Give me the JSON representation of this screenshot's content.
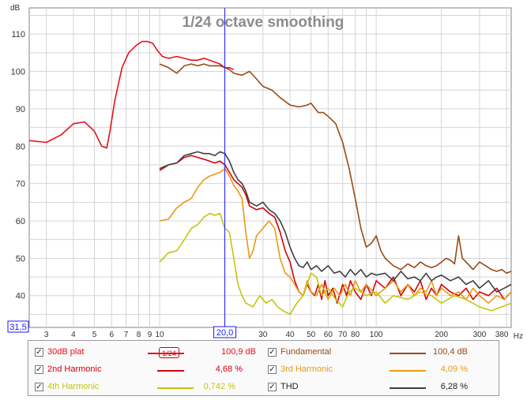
{
  "chart_data": {
    "type": "line",
    "title": "1/24 octave smoothing",
    "xlabel": "Hz",
    "ylabel": "dB",
    "xscale": "log",
    "xlim": [
      2.5,
      420
    ],
    "ylim": [
      31.5,
      117
    ],
    "grid": true,
    "y_ticks": [
      110,
      100,
      90,
      80,
      70,
      60,
      50,
      40
    ],
    "y_axis_min_label": "31,5",
    "x_ticks": [
      {
        "v": 3,
        "label": "3"
      },
      {
        "v": 4,
        "label": "4"
      },
      {
        "v": 5,
        "label": "5"
      },
      {
        "v": 6,
        "label": "6"
      },
      {
        "v": 7,
        "label": "7"
      },
      {
        "v": 8,
        "label": "8"
      },
      {
        "v": 9,
        "label": "9"
      },
      {
        "v": 10,
        "label": "10"
      },
      {
        "v": 30,
        "label": "30"
      },
      {
        "v": 40,
        "label": "40"
      },
      {
        "v": 50,
        "label": "50"
      },
      {
        "v": 60,
        "label": "60"
      },
      {
        "v": 70,
        "label": "70"
      },
      {
        "v": 80,
        "label": "80"
      },
      {
        "v": 100,
        "label": "100"
      },
      {
        "v": 200,
        "label": "200"
      },
      {
        "v": 300,
        "label": "300"
      },
      {
        "v": 380,
        "label": "380"
      }
    ],
    "cursor": {
      "x": 20,
      "label": "20,0"
    },
    "series": [
      {
        "name": "30dB plat",
        "color": "#e8101a",
        "x": [
          2.5,
          3,
          3.5,
          4,
          4.5,
          5,
          5.4,
          5.7,
          5.9,
          6.2,
          6.7,
          7.2,
          7.8,
          8.3,
          8.8,
          9.3,
          9.8,
          10.3,
          11,
          12,
          13,
          14,
          15,
          16,
          17,
          18,
          19,
          20,
          21,
          22
        ],
        "y": [
          81.5,
          81,
          83,
          86,
          86.5,
          84,
          80,
          79.5,
          84,
          92,
          101,
          105,
          107,
          108,
          108,
          107.5,
          105.5,
          104,
          103.5,
          104,
          103.5,
          103,
          103,
          103.5,
          103,
          102.5,
          102,
          101,
          101,
          100.5
        ]
      },
      {
        "name": "Fundamental",
        "color": "#9a4a14",
        "x": [
          10,
          11,
          12,
          13,
          14,
          15,
          16,
          17,
          18,
          19,
          20,
          21,
          22,
          24,
          26,
          28,
          30,
          33,
          36,
          40,
          44,
          48,
          50,
          54,
          57,
          60,
          65,
          70,
          75,
          80,
          85,
          90,
          95,
          100,
          105,
          110,
          120,
          130,
          140,
          150,
          160,
          170,
          180,
          190,
          200,
          210,
          220,
          230,
          240,
          250,
          260,
          280,
          300,
          320,
          340,
          360,
          380,
          400,
          420
        ],
        "y": [
          102,
          101,
          99.5,
          101.5,
          102,
          101.5,
          102,
          101.5,
          101.5,
          101.5,
          101,
          100.5,
          99.5,
          99,
          100,
          98,
          96,
          95,
          93,
          91,
          90.5,
          91,
          91.5,
          89,
          89,
          88,
          86,
          81,
          74,
          66,
          58,
          53,
          54,
          56,
          52,
          50,
          48,
          47,
          48.5,
          47.5,
          49,
          48,
          47.5,
          48,
          49,
          50,
          49.5,
          48.5,
          56,
          50,
          49,
          47,
          49,
          48,
          47,
          46.5,
          47,
          46,
          46.5
        ]
      },
      {
        "name": "2nd Harmonic",
        "color": "#d4000e",
        "x": [
          10,
          11,
          12,
          13,
          14,
          15,
          16,
          17,
          18,
          19,
          20,
          21,
          22,
          23,
          24,
          25,
          26,
          28,
          30,
          32,
          34,
          36,
          38,
          40,
          42,
          44,
          46,
          48,
          50,
          52,
          54,
          56,
          58,
          60,
          63,
          66,
          70,
          73,
          76,
          80,
          85,
          90,
          95,
          100,
          110,
          120,
          130,
          140,
          150,
          160,
          170,
          180,
          190,
          200,
          220,
          240,
          260,
          280,
          300,
          330,
          360,
          390,
          420
        ],
        "y": [
          73.5,
          75,
          75.5,
          77,
          77.5,
          77,
          76.5,
          76,
          75.5,
          76,
          75,
          73,
          71,
          70,
          69,
          67,
          64,
          63,
          63.5,
          62,
          61,
          57,
          52,
          49,
          44,
          41,
          40,
          43,
          41,
          40,
          43,
          39,
          44,
          40,
          42,
          38,
          43,
          40,
          44,
          41,
          39,
          43,
          40,
          44,
          42,
          45,
          40,
          43,
          41,
          44,
          39,
          42,
          40,
          43,
          41,
          40,
          42,
          39,
          41,
          40,
          42,
          39,
          41
        ]
      },
      {
        "name": "3rd Harmonic",
        "color": "#e89a14",
        "x": [
          10,
          11,
          12,
          13,
          14,
          15,
          16,
          17,
          18,
          19,
          20,
          21,
          22,
          23,
          24,
          25,
          26,
          27,
          28,
          30,
          32,
          34,
          36,
          38,
          40,
          42,
          44,
          46,
          48,
          50,
          53,
          56,
          60,
          64,
          68,
          72,
          76,
          80,
          85,
          90,
          100,
          110,
          120,
          130,
          140,
          150,
          160,
          170,
          180,
          190,
          200,
          220,
          240,
          260,
          280,
          300,
          330,
          360,
          390,
          420
        ],
        "y": [
          60,
          60.5,
          63.5,
          65,
          66,
          69,
          71,
          72,
          72.5,
          73,
          74,
          72,
          69.5,
          68,
          66,
          57,
          50,
          52,
          56,
          58,
          60,
          58,
          50,
          46,
          45,
          43,
          41,
          40,
          44,
          41,
          40,
          43,
          39,
          42,
          40,
          43,
          40,
          44,
          41,
          43,
          40,
          42,
          44,
          41,
          43,
          40,
          42,
          41,
          44,
          40,
          42,
          40,
          41,
          39,
          42,
          40,
          38,
          40,
          39,
          41
        ]
      },
      {
        "name": "4th Harmonic",
        "color": "#c4c410",
        "x": [
          10,
          11,
          12,
          13,
          14,
          15,
          16,
          17,
          18,
          19,
          20,
          21,
          22,
          23,
          24,
          25,
          27,
          29,
          31,
          33,
          35,
          37,
          40,
          43,
          46,
          50,
          53,
          56,
          60,
          65,
          70,
          75,
          80,
          90,
          100,
          110,
          120,
          140,
          160,
          180,
          200,
          230,
          260,
          300,
          340,
          380,
          420
        ],
        "y": [
          49,
          51.5,
          52,
          55,
          58,
          59,
          61,
          62,
          61.5,
          62,
          58,
          57,
          50,
          43,
          40,
          38,
          37,
          40,
          38,
          39,
          37,
          36,
          35,
          38,
          40,
          46,
          45,
          40,
          42,
          39,
          37,
          41,
          42,
          40,
          41,
          38,
          40,
          39,
          41,
          40,
          38,
          40,
          39,
          37,
          36,
          37,
          38
        ]
      },
      {
        "name": "THD",
        "color": "#404040",
        "x": [
          10,
          11,
          12,
          13,
          14,
          15,
          16,
          17,
          18,
          19,
          20,
          21,
          22,
          23,
          24,
          25,
          26,
          28,
          30,
          32,
          34,
          36,
          38,
          40,
          42,
          44,
          46,
          48,
          50,
          53,
          56,
          60,
          64,
          68,
          72,
          76,
          80,
          85,
          90,
          95,
          100,
          110,
          120,
          130,
          140,
          150,
          160,
          170,
          180,
          190,
          200,
          220,
          240,
          260,
          280,
          300,
          330,
          360,
          390,
          420
        ],
        "y": [
          74,
          75,
          75.5,
          77.5,
          78,
          78.5,
          78,
          78,
          77.5,
          78.5,
          78,
          76,
          73,
          71,
          70,
          68,
          65,
          64,
          65,
          63,
          62,
          60,
          57,
          53,
          50,
          48,
          47.5,
          49,
          47,
          48,
          46.5,
          48,
          46,
          46.5,
          45,
          47,
          45.5,
          47,
          45,
          46,
          45.5,
          46,
          44,
          46.5,
          44.5,
          45,
          44,
          46,
          44,
          45,
          45.5,
          44,
          45,
          43,
          44,
          42,
          44,
          41,
          42,
          43
        ]
      }
    ]
  },
  "legend": [
    {
      "label": "30dB plat",
      "value": "100,9 dB",
      "color": "#e8101a",
      "checked": true,
      "smoothing": "1/24"
    },
    {
      "label": "Fundamental",
      "value": "100,4 dB",
      "color": "#9a4a14",
      "checked": true
    },
    {
      "label": "2nd Harmonic",
      "value": "4,68 %",
      "color": "#d4000e",
      "checked": true
    },
    {
      "label": "3rd Harmonic",
      "value": "4,09 %",
      "color": "#e89a14",
      "checked": true
    },
    {
      "label": "4th Harmonic",
      "value": "0,742 %",
      "color": "#c4c410",
      "checked": true
    },
    {
      "label": "THD",
      "value": "6,28 %",
      "color": "#404040",
      "checked": true
    }
  ],
  "check_glyph": "✓"
}
